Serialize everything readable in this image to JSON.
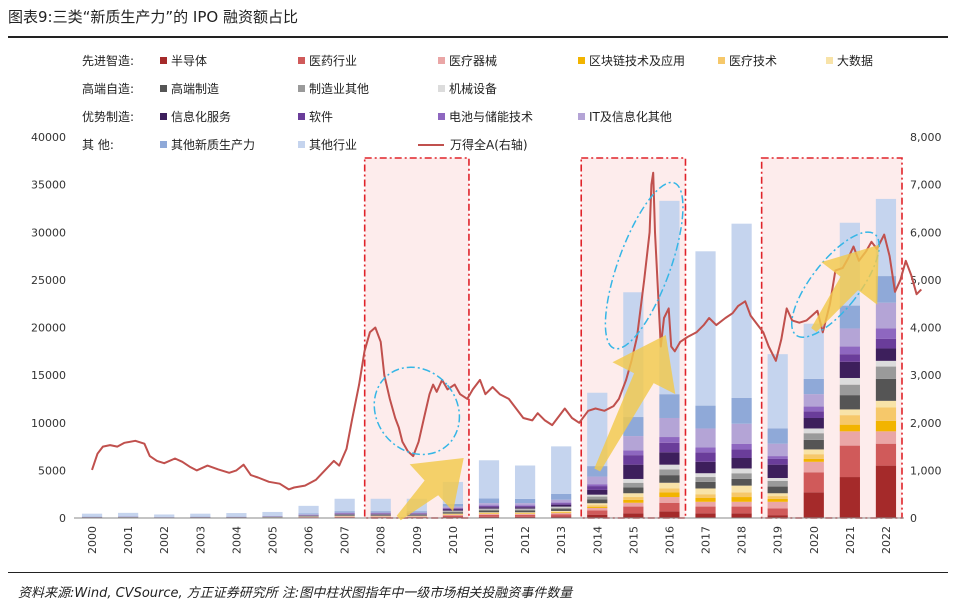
{
  "title": "图表9:三类“新质生产力”的 IPO 融资额占比",
  "source_note": "资料来源:Wind, CVSource, 方正证券研究所 注:图中柱状图指年中一级市场相关投融资事件数量",
  "legend": {
    "categories": [
      "先进智造:",
      "高端自造:",
      "优势制造:",
      "其    他:"
    ],
    "items": [
      {
        "label": "半导体",
        "color": "#a52a2a"
      },
      {
        "label": "医药行业",
        "color": "#d05a5a"
      },
      {
        "label": "医疗器械",
        "color": "#eaa6a6"
      },
      {
        "label": "区块链技术及应用",
        "color": "#f2b400"
      },
      {
        "label": "医疗技术",
        "color": "#f6c86a"
      },
      {
        "label": "大数据",
        "color": "#f8e3a8"
      },
      {
        "label": "高端制造",
        "color": "#555555"
      },
      {
        "label": "制造业其他",
        "color": "#9a9a9a"
      },
      {
        "label": "机械设备",
        "color": "#dcdcdc"
      },
      {
        "label": "信息化服务",
        "color": "#3d1f5c"
      },
      {
        "label": "软件",
        "color": "#6a3d9a"
      },
      {
        "label": "电池与储能技术",
        "color": "#8e67c0"
      },
      {
        "label": "IT及信息化其他",
        "color": "#b4a4d6"
      },
      {
        "label": "其他新质生产力",
        "color": "#8fa9d8"
      },
      {
        "label": "其他行业",
        "color": "#c5d4ee"
      },
      {
        "label": "万得全A(右轴)",
        "color": "#c0504d"
      }
    ]
  },
  "chart_data": {
    "type": "bar",
    "categories": [
      "2000",
      "2001",
      "2002",
      "2003",
      "2004",
      "2005",
      "2006",
      "2007",
      "2008",
      "2009",
      "2010",
      "2011",
      "2012",
      "2013",
      "2014",
      "2015",
      "2016",
      "2017",
      "2018",
      "2019",
      "2020",
      "2021",
      "2022"
    ],
    "series": [
      {
        "name": "半导体",
        "values": [
          15,
          15,
          10,
          15,
          15,
          20,
          40,
          60,
          60,
          60,
          100,
          120,
          120,
          150,
          350,
          500,
          700,
          500,
          500,
          300,
          2700,
          4300,
          5500
        ]
      },
      {
        "name": "医药行业",
        "values": [
          20,
          25,
          15,
          20,
          20,
          30,
          50,
          70,
          70,
          70,
          150,
          200,
          200,
          250,
          450,
          700,
          900,
          700,
          700,
          700,
          2100,
          3300,
          2300
        ]
      },
      {
        "name": "医疗器械",
        "values": [
          10,
          10,
          5,
          10,
          10,
          15,
          25,
          40,
          40,
          40,
          80,
          100,
          100,
          120,
          250,
          400,
          600,
          500,
          500,
          700,
          1100,
          1500,
          1300
        ]
      },
      {
        "name": "区块链技术及应用",
        "values": [
          0,
          0,
          0,
          0,
          0,
          0,
          5,
          10,
          10,
          10,
          30,
          40,
          40,
          50,
          100,
          300,
          500,
          400,
          500,
          300,
          300,
          700,
          1100
        ]
      },
      {
        "name": "医疗技术",
        "values": [
          0,
          0,
          0,
          0,
          0,
          5,
          10,
          15,
          15,
          15,
          40,
          60,
          60,
          70,
          200,
          300,
          400,
          400,
          500,
          300,
          500,
          1000,
          1400
        ]
      },
      {
        "name": "大数据",
        "values": [
          0,
          0,
          0,
          0,
          0,
          5,
          10,
          20,
          20,
          20,
          60,
          80,
          80,
          100,
          200,
          400,
          600,
          600,
          700,
          300,
          500,
          600,
          700
        ]
      },
      {
        "name": "高端制造",
        "values": [
          20,
          25,
          15,
          20,
          20,
          25,
          50,
          70,
          70,
          70,
          150,
          180,
          180,
          200,
          400,
          600,
          800,
          700,
          700,
          700,
          1000,
          1500,
          2300
        ]
      },
      {
        "name": "制造业其他",
        "values": [
          10,
          15,
          10,
          10,
          10,
          15,
          30,
          50,
          50,
          50,
          100,
          120,
          120,
          150,
          300,
          500,
          600,
          500,
          600,
          600,
          700,
          1100,
          1300
        ]
      },
      {
        "name": "机械设备",
        "values": [
          5,
          5,
          5,
          5,
          5,
          10,
          20,
          30,
          30,
          30,
          60,
          80,
          80,
          100,
          200,
          400,
          500,
          400,
          500,
          300,
          500,
          700,
          600
        ]
      },
      {
        "name": "信息化服务",
        "values": [
          15,
          20,
          10,
          15,
          15,
          20,
          40,
          60,
          60,
          60,
          120,
          150,
          150,
          200,
          500,
          1500,
          1300,
          1200,
          1100,
          1400,
          1100,
          1700,
          1300
        ]
      },
      {
        "name": "软件",
        "values": [
          10,
          10,
          5,
          10,
          10,
          15,
          30,
          50,
          50,
          50,
          100,
          120,
          120,
          150,
          400,
          1000,
          1000,
          1000,
          900,
          600,
          700,
          800,
          1000
        ]
      },
      {
        "name": "电池与储能技术",
        "values": [
          5,
          5,
          5,
          5,
          5,
          5,
          15,
          25,
          25,
          25,
          50,
          60,
          60,
          80,
          200,
          500,
          600,
          500,
          600,
          300,
          500,
          800,
          1100
        ]
      },
      {
        "name": "IT及信息化其他",
        "values": [
          15,
          20,
          15,
          15,
          20,
          20,
          50,
          70,
          70,
          70,
          150,
          250,
          250,
          300,
          800,
          1500,
          2000,
          2000,
          2100,
          1300,
          1300,
          1900,
          2700
        ]
      },
      {
        "name": "其他新质生产力",
        "values": [
          30,
          40,
          25,
          30,
          40,
          50,
          100,
          150,
          150,
          150,
          300,
          500,
          450,
          600,
          1100,
          2000,
          2500,
          2400,
          2700,
          1600,
          1600,
          2400,
          2800
        ]
      },
      {
        "name": "其他行业",
        "values": [
          300,
          350,
          250,
          300,
          350,
          400,
          800,
          1300,
          1300,
          1300,
          2300,
          4000,
          3500,
          5000,
          7700,
          13100,
          20300,
          16200,
          18300,
          7800,
          5800,
          8700,
          8100
        ]
      }
    ],
    "line_series": {
      "name": "万得全A(右轴)",
      "axis": "right",
      "points": [
        [
          2000.0,
          1010
        ],
        [
          2000.15,
          1350
        ],
        [
          2000.3,
          1500
        ],
        [
          2000.5,
          1530
        ],
        [
          2000.7,
          1500
        ],
        [
          2000.9,
          1580
        ],
        [
          2001.2,
          1620
        ],
        [
          2001.45,
          1560
        ],
        [
          2001.6,
          1300
        ],
        [
          2001.8,
          1200
        ],
        [
          2002.0,
          1150
        ],
        [
          2002.3,
          1250
        ],
        [
          2002.5,
          1180
        ],
        [
          2002.7,
          1080
        ],
        [
          2002.9,
          1000
        ],
        [
          2003.2,
          1100
        ],
        [
          2003.5,
          1020
        ],
        [
          2003.8,
          950
        ],
        [
          2004.0,
          1000
        ],
        [
          2004.2,
          1120
        ],
        [
          2004.4,
          900
        ],
        [
          2004.6,
          850
        ],
        [
          2004.9,
          760
        ],
        [
          2005.2,
          720
        ],
        [
          2005.45,
          600
        ],
        [
          2005.6,
          640
        ],
        [
          2005.9,
          680
        ],
        [
          2006.2,
          800
        ],
        [
          2006.45,
          1000
        ],
        [
          2006.7,
          1200
        ],
        [
          2006.85,
          1100
        ],
        [
          2007.05,
          1450
        ],
        [
          2007.2,
          2050
        ],
        [
          2007.4,
          2800
        ],
        [
          2007.55,
          3500
        ],
        [
          2007.7,
          3900
        ],
        [
          2007.85,
          4000
        ],
        [
          2008.0,
          3700
        ],
        [
          2008.1,
          3000
        ],
        [
          2008.25,
          2500
        ],
        [
          2008.4,
          2100
        ],
        [
          2008.5,
          1900
        ],
        [
          2008.6,
          1600
        ],
        [
          2008.75,
          1400
        ],
        [
          2008.9,
          1300
        ],
        [
          2009.05,
          1600
        ],
        [
          2009.2,
          2100
        ],
        [
          2009.35,
          2600
        ],
        [
          2009.45,
          2800
        ],
        [
          2009.55,
          2650
        ],
        [
          2009.7,
          2900
        ],
        [
          2009.85,
          2700
        ],
        [
          2010.05,
          2800
        ],
        [
          2010.2,
          2600
        ],
        [
          2010.4,
          2500
        ],
        [
          2010.55,
          2700
        ],
        [
          2010.75,
          2900
        ],
        [
          2010.9,
          2600
        ],
        [
          2011.1,
          2750
        ],
        [
          2011.3,
          2600
        ],
        [
          2011.55,
          2500
        ],
        [
          2011.75,
          2300
        ],
        [
          2011.95,
          2100
        ],
        [
          2012.2,
          2050
        ],
        [
          2012.35,
          2200
        ],
        [
          2012.55,
          2050
        ],
        [
          2012.75,
          1950
        ],
        [
          2012.95,
          2150
        ],
        [
          2013.1,
          2300
        ],
        [
          2013.3,
          2100
        ],
        [
          2013.5,
          2000
        ],
        [
          2013.75,
          2250
        ],
        [
          2013.95,
          2300
        ],
        [
          2014.2,
          2250
        ],
        [
          2014.45,
          2350
        ],
        [
          2014.6,
          2500
        ],
        [
          2014.8,
          2900
        ],
        [
          2014.95,
          3300
        ],
        [
          2015.1,
          3800
        ],
        [
          2015.3,
          5000
        ],
        [
          2015.45,
          6000
        ],
        [
          2015.5,
          7000
        ],
        [
          2015.55,
          7250
        ],
        [
          2015.6,
          6000
        ],
        [
          2015.68,
          4800
        ],
        [
          2015.76,
          3600
        ],
        [
          2015.85,
          4200
        ],
        [
          2015.98,
          4400
        ],
        [
          2016.05,
          3600
        ],
        [
          2016.15,
          3500
        ],
        [
          2016.3,
          3700
        ],
        [
          2016.5,
          3800
        ],
        [
          2016.75,
          3900
        ],
        [
          2016.95,
          4050
        ],
        [
          2017.1,
          4200
        ],
        [
          2017.3,
          4050
        ],
        [
          2017.55,
          4200
        ],
        [
          2017.75,
          4300
        ],
        [
          2017.9,
          4450
        ],
        [
          2018.1,
          4550
        ],
        [
          2018.25,
          4250
        ],
        [
          2018.45,
          4050
        ],
        [
          2018.6,
          3900
        ],
        [
          2018.75,
          3600
        ],
        [
          2018.95,
          3300
        ],
        [
          2019.1,
          3750
        ],
        [
          2019.25,
          4400
        ],
        [
          2019.4,
          4150
        ],
        [
          2019.6,
          4100
        ],
        [
          2019.8,
          4150
        ],
        [
          2019.95,
          4250
        ],
        [
          2020.1,
          4350
        ],
        [
          2020.25,
          3900
        ],
        [
          2020.45,
          4500
        ],
        [
          2020.6,
          5200
        ],
        [
          2020.8,
          5250
        ],
        [
          2020.95,
          5450
        ],
        [
          2021.1,
          5700
        ],
        [
          2021.25,
          5400
        ],
        [
          2021.45,
          5600
        ],
        [
          2021.6,
          5800
        ],
        [
          2021.75,
          5650
        ],
        [
          2021.95,
          5950
        ],
        [
          2022.1,
          5500
        ],
        [
          2022.25,
          4750
        ],
        [
          2022.4,
          5000
        ],
        [
          2022.55,
          5400
        ],
        [
          2022.7,
          5100
        ],
        [
          2022.85,
          4700
        ],
        [
          2022.98,
          4800
        ]
      ]
    },
    "ylim_left": [
      0,
      40000
    ],
    "ylim_right": [
      0,
      8000
    ],
    "yticks_left": [
      "0",
      "5000",
      "10000",
      "15000",
      "20000",
      "25000",
      "30000",
      "35000",
      "40000"
    ],
    "yticks_right": [
      "0",
      "1,000",
      "2,000",
      "3,000",
      "4,000",
      "5,000",
      "6,000",
      "7,000",
      "8,000"
    ],
    "highlight_periods": [
      [
        "2008",
        "2010"
      ],
      [
        "2014",
        "2016"
      ],
      [
        "2019",
        "2022"
      ]
    ],
    "grid": false,
    "legend_position": "top"
  }
}
